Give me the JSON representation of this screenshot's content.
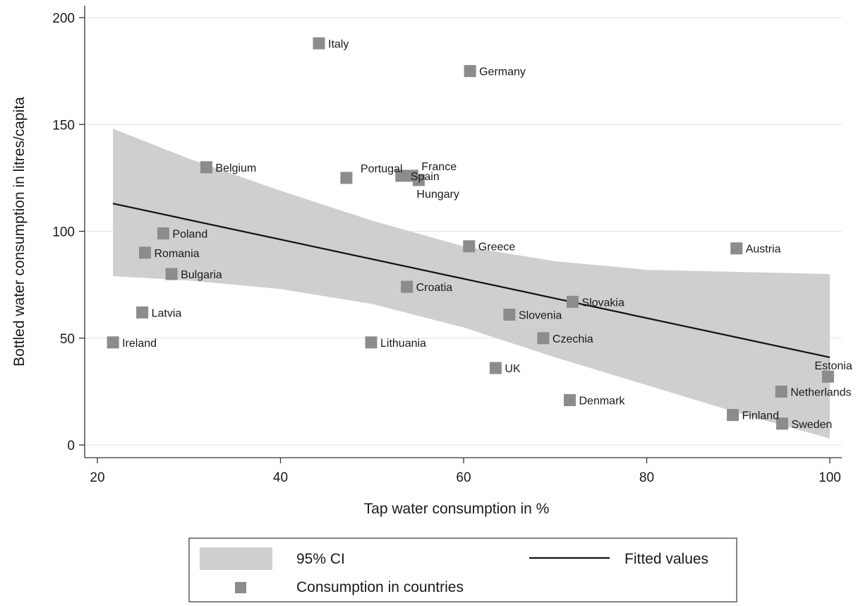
{
  "chart_data": {
    "type": "scatter",
    "xlabel": "Tap water consumption in %",
    "ylabel": "Bottled water consumption in litres/capita",
    "xlim": [
      20,
      100
    ],
    "ylim": [
      0,
      200
    ],
    "xticks": [
      "20",
      "40",
      "60",
      "80",
      "100"
    ],
    "yticks": [
      "0",
      "50",
      "100",
      "150",
      "200"
    ],
    "grid": true,
    "legend_placement": "bottom",
    "colors": {
      "ci_band": "#cfcfcf",
      "marker": "#8c8c8c",
      "fit_line": "#111111"
    },
    "series": [
      {
        "name": "Consumption in countries",
        "kind": "points",
        "points": [
          {
            "label": "Italy",
            "x": 44.2,
            "y": 188
          },
          {
            "label": "Germany",
            "x": 60.7,
            "y": 175
          },
          {
            "label": "Belgium",
            "x": 31.9,
            "y": 130
          },
          {
            "label": "Portugal",
            "x": 47.2,
            "y": 125
          },
          {
            "label": "Spain",
            "x": 53.2,
            "y": 126
          },
          {
            "label": "France",
            "x": 54.4,
            "y": 126
          },
          {
            "label": "Hungary",
            "x": 55.1,
            "y": 124
          },
          {
            "label": "Poland",
            "x": 27.2,
            "y": 99
          },
          {
            "label": "Romania",
            "x": 25.2,
            "y": 90
          },
          {
            "label": "Bulgaria",
            "x": 28.1,
            "y": 80
          },
          {
            "label": "Greece",
            "x": 60.6,
            "y": 93
          },
          {
            "label": "Austria",
            "x": 89.8,
            "y": 92
          },
          {
            "label": "Croatia",
            "x": 53.8,
            "y": 74
          },
          {
            "label": "Slovakia",
            "x": 71.9,
            "y": 67
          },
          {
            "label": "Slovenia",
            "x": 65.0,
            "y": 61
          },
          {
            "label": "Latvia",
            "x": 24.9,
            "y": 62
          },
          {
            "label": "Czechia",
            "x": 68.7,
            "y": 50
          },
          {
            "label": "Ireland",
            "x": 21.7,
            "y": 48
          },
          {
            "label": "Lithuania",
            "x": 49.9,
            "y": 48
          },
          {
            "label": "UK",
            "x": 63.5,
            "y": 36
          },
          {
            "label": "Estonia",
            "x": 99.8,
            "y": 32
          },
          {
            "label": "Netherlands",
            "x": 94.7,
            "y": 25
          },
          {
            "label": "Denmark",
            "x": 71.6,
            "y": 21
          },
          {
            "label": "Finland",
            "x": 89.4,
            "y": 14
          },
          {
            "label": "Sweden",
            "x": 94.8,
            "y": 10
          }
        ]
      },
      {
        "name": "Fitted values",
        "kind": "line",
        "x": [
          21.7,
          100
        ],
        "y": [
          113,
          41
        ]
      },
      {
        "name": "95% CI",
        "kind": "band",
        "x": [
          21.7,
          30,
          40,
          50,
          60,
          70,
          80,
          90,
          100
        ],
        "upper": [
          148,
          134,
          119,
          105,
          93,
          86,
          82,
          81,
          80
        ],
        "lower": [
          79,
          77,
          73,
          66,
          55,
          41,
          28,
          15,
          3
        ]
      }
    ]
  }
}
